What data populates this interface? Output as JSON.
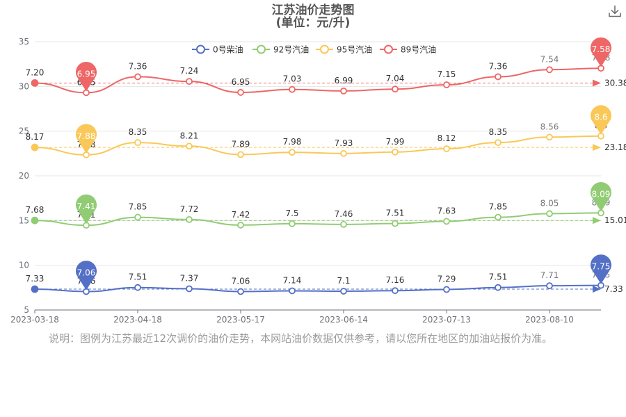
{
  "page": {
    "title_line1": "江苏油价走势图",
    "title_line2": "(单位：元/升)",
    "download_icon": "download-icon",
    "note": "说明：图例为江苏最近12次调价的油价走势，本网站油价数据仅供参考，请以您所在地区的加油站报价为准。"
  },
  "chart_data": {
    "type": "line",
    "x_tick_labels": [
      "2023-03-18",
      "2023-04-18",
      "2023-05-17",
      "2023-06-14",
      "2023-07-13",
      "2023-08-10"
    ],
    "y_tick_labels": [
      "5",
      "10",
      "15",
      "20",
      "25",
      "30",
      "35"
    ],
    "ylim": [
      5,
      35
    ],
    "grid": "horizontal",
    "legend_position": "top-center",
    "x": [
      "2023-03-18",
      "2023-03-31",
      "2023-04-18",
      "2023-05-04",
      "2023-05-17",
      "2023-05-31",
      "2023-06-14",
      "2023-06-28",
      "2023-07-13",
      "2023-07-27",
      "2023-08-10",
      "2023-08-24"
    ],
    "series": [
      {
        "name": "0号柴油",
        "color": "#5470c6",
        "labels": [
          "7.33",
          "7.06",
          "7.51",
          "7.37",
          "7.06",
          "7.14",
          "7.1",
          "7.16",
          "7.29",
          "7.51",
          "7.71",
          "7.75"
        ],
        "y": [
          7.33,
          7.06,
          7.51,
          7.37,
          7.06,
          7.14,
          7.1,
          7.16,
          7.29,
          7.51,
          7.71,
          7.75
        ],
        "min_label": "7.06",
        "max_label": "7.75",
        "avg_label": "7.33"
      },
      {
        "name": "92号汽油",
        "color": "#91cc75",
        "labels": [
          "7.68",
          "7.41",
          "7.85",
          "7.72",
          "7.42",
          "7.5",
          "7.46",
          "7.51",
          "7.63",
          "7.85",
          "8.05",
          "8.09"
        ],
        "y": [
          15.01,
          14.47,
          15.37,
          15.11,
          14.49,
          14.65,
          14.57,
          14.67,
          14.91,
          15.37,
          15.77,
          15.85
        ],
        "min_label": "7.41",
        "max_label": "8.09",
        "avg_label": "15.01"
      },
      {
        "name": "95号汽油",
        "color": "#fac858",
        "labels": [
          "8.17",
          "7.88",
          "8.35",
          "8.21",
          "7.89",
          "7.98",
          "7.93",
          "7.99",
          "8.12",
          "8.35",
          "8.56",
          "8.6"
        ],
        "y": [
          23.18,
          22.35,
          23.72,
          23.32,
          22.38,
          22.63,
          22.5,
          22.66,
          23.03,
          23.72,
          24.33,
          24.45
        ],
        "min_label": "7.88",
        "max_label": "8.6",
        "avg_label": "23.18"
      },
      {
        "name": "89号汽油",
        "color": "#ee6666",
        "labels": [
          "7.20",
          "6.95",
          "7.36",
          "7.24",
          "6.95",
          "7.03",
          "6.99",
          "7.04",
          "7.15",
          "7.36",
          "7.54",
          "7.58"
        ],
        "y": [
          30.38,
          29.3,
          31.08,
          30.56,
          29.33,
          29.66,
          29.49,
          29.7,
          30.18,
          31.08,
          31.87,
          32.03
        ],
        "min_label": "6.95",
        "max_label": "7.58",
        "avg_label": "30.38"
      }
    ]
  }
}
